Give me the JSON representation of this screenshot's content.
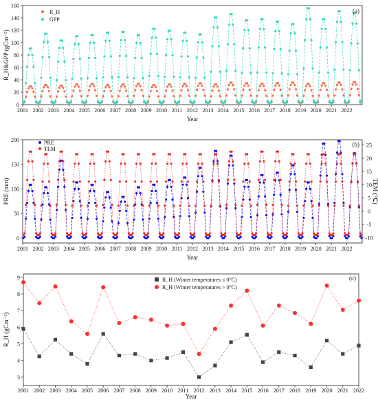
{
  "chart_data": [
    {
      "type": "line",
      "panel": "(a)",
      "title": "",
      "xlabel": "Year",
      "ylabel": "R_H&GPP (gCm⁻²)",
      "x_years": [
        2001,
        2002,
        2003,
        2004,
        2005,
        2006,
        2007,
        2008,
        2009,
        2010,
        2011,
        2012,
        2013,
        2014,
        2015,
        2016,
        2017,
        2018,
        2019,
        2020,
        2021,
        2022
      ],
      "xlim": [
        2001,
        2023
      ],
      "ylim": [
        0,
        160
      ],
      "yticks": [
        0,
        20,
        40,
        60,
        80,
        100,
        120,
        140,
        160
      ],
      "legend": "top-left",
      "grid": false,
      "series": [
        {
          "name": "R_H",
          "color": "#f4704f",
          "style": "dotted",
          "marker": "circle",
          "annual_peak": [
            30,
            32,
            31,
            33,
            34,
            32,
            33,
            34,
            32,
            33,
            34,
            35,
            33,
            36,
            35,
            34,
            35,
            36,
            34,
            35,
            36,
            37
          ],
          "annual_min": [
            3,
            3,
            3,
            3,
            3,
            3,
            3,
            3,
            3,
            3,
            3,
            3,
            3,
            3,
            3,
            3,
            3,
            3,
            3,
            3,
            3,
            3
          ]
        },
        {
          "name": "GPP",
          "color": "#33d9bf",
          "style": "dashed",
          "marker": "circle",
          "annual_peak": [
            92,
            116,
            105,
            112,
            114,
            118,
            119,
            114,
            124,
            121,
            118,
            115,
            143,
            148,
            138,
            140,
            136,
            132,
            158,
            140,
            153,
            150
          ],
          "annual_min": [
            3,
            3,
            3,
            3,
            3,
            3,
            3,
            3,
            3,
            3,
            3,
            3,
            3,
            3,
            3,
            3,
            3,
            3,
            3,
            3,
            3,
            3
          ]
        }
      ]
    },
    {
      "type": "line",
      "panel": "(b)",
      "title": "",
      "xlabel": "Year",
      "ylabel": "PRE (mm)",
      "ylabel_right": "TEM (℃)",
      "x_years": [
        2001,
        2002,
        2003,
        2004,
        2005,
        2006,
        2007,
        2008,
        2009,
        2010,
        2011,
        2012,
        2013,
        2014,
        2015,
        2016,
        2017,
        2018,
        2019,
        2020,
        2021,
        2022
      ],
      "xlim": [
        2001,
        2023
      ],
      "ylim": [
        -10,
        200
      ],
      "yticks": [
        0,
        50,
        100,
        150,
        200
      ],
      "ylim_right": [
        -12,
        27
      ],
      "yticks_right": [
        -10,
        -5,
        0,
        5,
        10,
        15,
        20,
        25
      ],
      "legend": "top-left",
      "grid": false,
      "series": [
        {
          "name": "PRE",
          "color": "#1616e6",
          "style": "dashed",
          "marker": "circle",
          "axis": "left",
          "annual_peak": [
            110,
            105,
            160,
            115,
            110,
            95,
            85,
            105,
            110,
            120,
            125,
            145,
            180,
            170,
            120,
            130,
            135,
            150,
            115,
            195,
            200,
            175
          ],
          "annual_min": [
            0,
            0,
            0,
            0,
            0,
            0,
            0,
            0,
            0,
            0,
            0,
            0,
            0,
            0,
            0,
            0,
            0,
            0,
            0,
            0,
            0,
            0
          ]
        },
        {
          "name": "TEM",
          "color": "#ee2b2b",
          "style": "dotted",
          "marker": "circle",
          "axis": "right",
          "annual_peak": [
            23,
            22,
            23,
            22,
            22,
            23,
            22,
            22,
            22,
            22,
            22,
            22,
            22,
            23,
            22,
            23,
            23,
            22,
            22,
            22,
            22,
            22
          ],
          "annual_min": [
            -9,
            -9,
            -9,
            -9,
            -9,
            -9,
            -9,
            -9,
            -9,
            -9,
            -9,
            -9,
            -9,
            -9,
            -9,
            -9,
            -9,
            -9,
            -9,
            -9,
            -9,
            -9
          ]
        }
      ]
    },
    {
      "type": "line",
      "panel": "(c)",
      "title": "",
      "xlabel": "Year",
      "ylabel": "R_H (gCm⁻²)",
      "categories": [
        "2001",
        "2002",
        "2003",
        "2004",
        "2005",
        "2006",
        "2007",
        "2008",
        "2009",
        "2010",
        "2011",
        "2012",
        "2013",
        "2014",
        "2015",
        "2016",
        "2017",
        "2018",
        "2019",
        "2020",
        "2021",
        "2022"
      ],
      "ylim": [
        2.5,
        9.2
      ],
      "yticks": [
        3,
        4,
        5,
        6,
        7,
        8,
        9
      ],
      "legend": "top-center",
      "grid": false,
      "series": [
        {
          "name": "R_H (Winter temperatures ≤ 0°C)",
          "color": "#444444",
          "marker": "square",
          "style": "dotted",
          "values": [
            5.9,
            4.25,
            5.25,
            4.4,
            3.8,
            5.6,
            4.3,
            4.4,
            4.0,
            4.15,
            4.5,
            3.0,
            3.7,
            5.1,
            5.55,
            3.9,
            4.5,
            4.3,
            3.6,
            5.2,
            4.4,
            4.9
          ]
        },
        {
          "name": "R_H (Winter temperatures > 0°C)",
          "color": "#ff2f2f",
          "marker": "circle",
          "style": "dotted",
          "values": [
            8.7,
            7.45,
            8.45,
            6.35,
            5.6,
            8.4,
            6.25,
            6.6,
            6.45,
            6.1,
            6.2,
            4.4,
            5.9,
            7.3,
            8.2,
            6.1,
            7.3,
            6.85,
            6.2,
            8.5,
            7.05,
            7.6
          ]
        }
      ]
    }
  ]
}
